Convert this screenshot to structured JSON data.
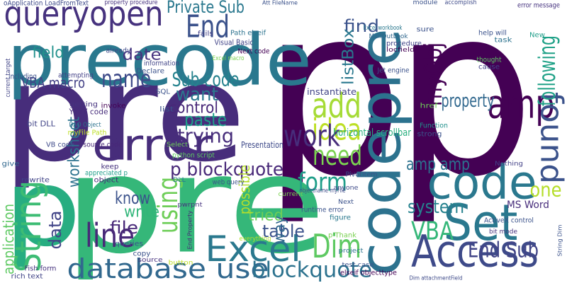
{
  "words": [
    "p",
    "p",
    "pre",
    "precode",
    "pre",
    "p",
    "codepre",
    "queryopen",
    "error",
    "End",
    "code",
    "Set",
    "Access",
    "amp",
    "found",
    "add",
    "idea",
    "work",
    "need",
    "form",
    "Excel",
    "Dim",
    "database use",
    "VBA",
    "End Sub",
    "String",
    "line",
    "using",
    "myObj",
    "following",
    "name",
    "date",
    "Private Sub",
    "Sub code",
    "want",
    "control",
    "paste",
    "trying",
    "p blockquote",
    "worksheet",
    "field",
    "VBA macro",
    "find",
    "property",
    "blockquote",
    "table",
    "system",
    "amp amp",
    "one",
    "know",
    "write",
    "file",
    "data",
    "application",
    "tried",
    "way",
    "possible",
    "horizontal scrollbar",
    "Presentation",
    "MS Word",
    "listBox",
    "instantiate",
    "oApplication LoadFromText",
    "property procedure",
    "Att FileName",
    "Visual Basic",
    "Path elseif",
    "Next code",
    "fails",
    "Excel macro",
    "information",
    "already",
    "Declare",
    "including",
    "attempting",
    "invoke",
    "SQL",
    "getting",
    "YYYY code",
    "DAO Object",
    "bit DLL",
    "myFile Path",
    "VB code",
    "source code",
    "give",
    "rewrite",
    "keep",
    "object",
    "appreciated p",
    "python script",
    "web query",
    "Select",
    "DLL",
    "queries",
    "copy",
    "source",
    "button",
    "rich text",
    "Fish form",
    "End Property",
    "pwrpnt",
    "current",
    "everything",
    "project",
    "test case",
    "elseif objecttype",
    "p Thank",
    "runtime error",
    "figure",
    "Next",
    "anyone",
    "PivotItem",
    "ActiveX control",
    "bit mode",
    "String Dim",
    "Dim attachmentField",
    "Nothing",
    "error message",
    "help will",
    "task",
    "New",
    "thought",
    "cause",
    "sure",
    "MailOutLook",
    "procedure",
    "locfield",
    "Excel workbook",
    "Jet engine",
    "href",
    "strong",
    "Function",
    "module",
    "accomplish",
    "list",
    "objectname myFile",
    "current target"
  ]
}
